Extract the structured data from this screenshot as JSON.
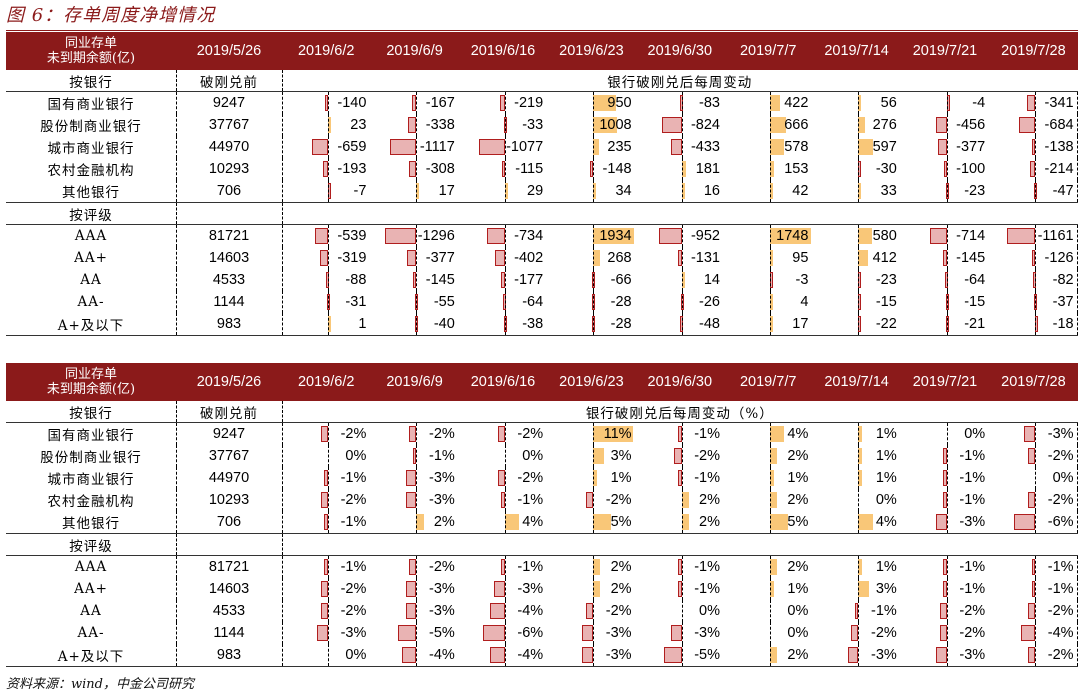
{
  "figure_title": "图 6：存单周度净增情况",
  "source_note": "资料来源：wind，中金公司研究",
  "header": {
    "label_line1": "同业存单",
    "label_line2": "未到期余额(亿)",
    "dates": [
      "2019/5/26",
      "2019/6/2",
      "2019/6/9",
      "2019/6/16",
      "2019/6/23",
      "2019/6/30",
      "2019/7/7",
      "2019/7/14",
      "2019/7/21",
      "2019/7/28"
    ]
  },
  "colors": {
    "header_bg": "#8b1a1a",
    "neg_fill": "#e9b3b3",
    "neg_border": "#b01e1e",
    "pos_fill": "#f9c778"
  },
  "table1": {
    "by_bank_label": "按银行",
    "base_label": "破刚兑前",
    "change_label": "银行破刚兑后每周变动",
    "by_rating_label": "按评级",
    "bank_rows": [
      {
        "name": "国有商业银行",
        "base": "9247",
        "values": [
          -140,
          -167,
          -219,
          950,
          -83,
          422,
          56,
          -4,
          -341
        ]
      },
      {
        "name": "股份制商业银行",
        "base": "37767",
        "values": [
          23,
          -338,
          -33,
          1008,
          -824,
          666,
          276,
          -456,
          -684
        ]
      },
      {
        "name": "城市商业银行",
        "base": "44970",
        "values": [
          -659,
          -1117,
          -1077,
          235,
          -433,
          578,
          597,
          -377,
          -138
        ]
      },
      {
        "name": "农村金融机构",
        "base": "10293",
        "values": [
          -193,
          -308,
          -115,
          -148,
          181,
          153,
          -30,
          -100,
          -214
        ]
      },
      {
        "name": "其他银行",
        "base": "706",
        "values": [
          -7,
          17,
          29,
          34,
          16,
          42,
          33,
          -23,
          -47
        ]
      }
    ],
    "rating_rows": [
      {
        "name": "AAA",
        "base": "81721",
        "values": [
          -539,
          -1296,
          -734,
          1934,
          -952,
          1748,
          580,
          -714,
          -1161
        ]
      },
      {
        "name": "AA+",
        "base": "14603",
        "values": [
          -319,
          -377,
          -402,
          268,
          -131,
          95,
          412,
          -145,
          -126
        ]
      },
      {
        "name": "AA",
        "base": "4533",
        "values": [
          -88,
          -145,
          -177,
          -66,
          14,
          -3,
          -23,
          -64,
          -82
        ]
      },
      {
        "name": "AA-",
        "base": "1144",
        "values": [
          -31,
          -55,
          -64,
          -28,
          -26,
          4,
          -15,
          -15,
          -37
        ]
      },
      {
        "name": "A+及以下",
        "base": "983",
        "values": [
          1,
          -40,
          -38,
          -28,
          -48,
          17,
          -22,
          -21,
          -18
        ]
      }
    ]
  },
  "table2": {
    "by_bank_label": "按银行",
    "base_label": "破刚兑前",
    "change_label": "银行破刚兑后每周变动（%）",
    "by_rating_label": "按评级",
    "bank_rows": [
      {
        "name": "国有商业银行",
        "base": "9247",
        "values": [
          -2,
          -2,
          -2,
          11,
          -1,
          4,
          1,
          0,
          -3
        ]
      },
      {
        "name": "股份制商业银行",
        "base": "37767",
        "values": [
          0,
          -1,
          0,
          3,
          -2,
          2,
          1,
          -1,
          -2
        ]
      },
      {
        "name": "城市商业银行",
        "base": "44970",
        "values": [
          -1,
          -3,
          -2,
          1,
          -1,
          1,
          1,
          -1,
          0
        ]
      },
      {
        "name": "农村金融机构",
        "base": "10293",
        "values": [
          -2,
          -3,
          -1,
          -2,
          2,
          2,
          0,
          -1,
          -2
        ]
      },
      {
        "name": "其他银行",
        "base": "706",
        "values": [
          -1,
          2,
          4,
          5,
          2,
          5,
          4,
          -3,
          -6
        ]
      }
    ],
    "rating_rows": [
      {
        "name": "AAA",
        "base": "81721",
        "values": [
          -1,
          -2,
          -1,
          2,
          -1,
          2,
          1,
          -1,
          -1
        ]
      },
      {
        "name": "AA+",
        "base": "14603",
        "values": [
          -2,
          -3,
          -3,
          2,
          -1,
          1,
          3,
          -1,
          -1
        ]
      },
      {
        "name": "AA",
        "base": "4533",
        "values": [
          -2,
          -3,
          -4,
          -2,
          0,
          0,
          -1,
          -2,
          -2
        ]
      },
      {
        "name": "AA-",
        "base": "1144",
        "values": [
          -3,
          -5,
          -6,
          -3,
          -3,
          0,
          -2,
          -2,
          -4
        ]
      },
      {
        "name": "A+及以下",
        "base": "983",
        "values": [
          0,
          -4,
          -4,
          -3,
          -5,
          2,
          -3,
          -3,
          -2
        ]
      }
    ]
  }
}
